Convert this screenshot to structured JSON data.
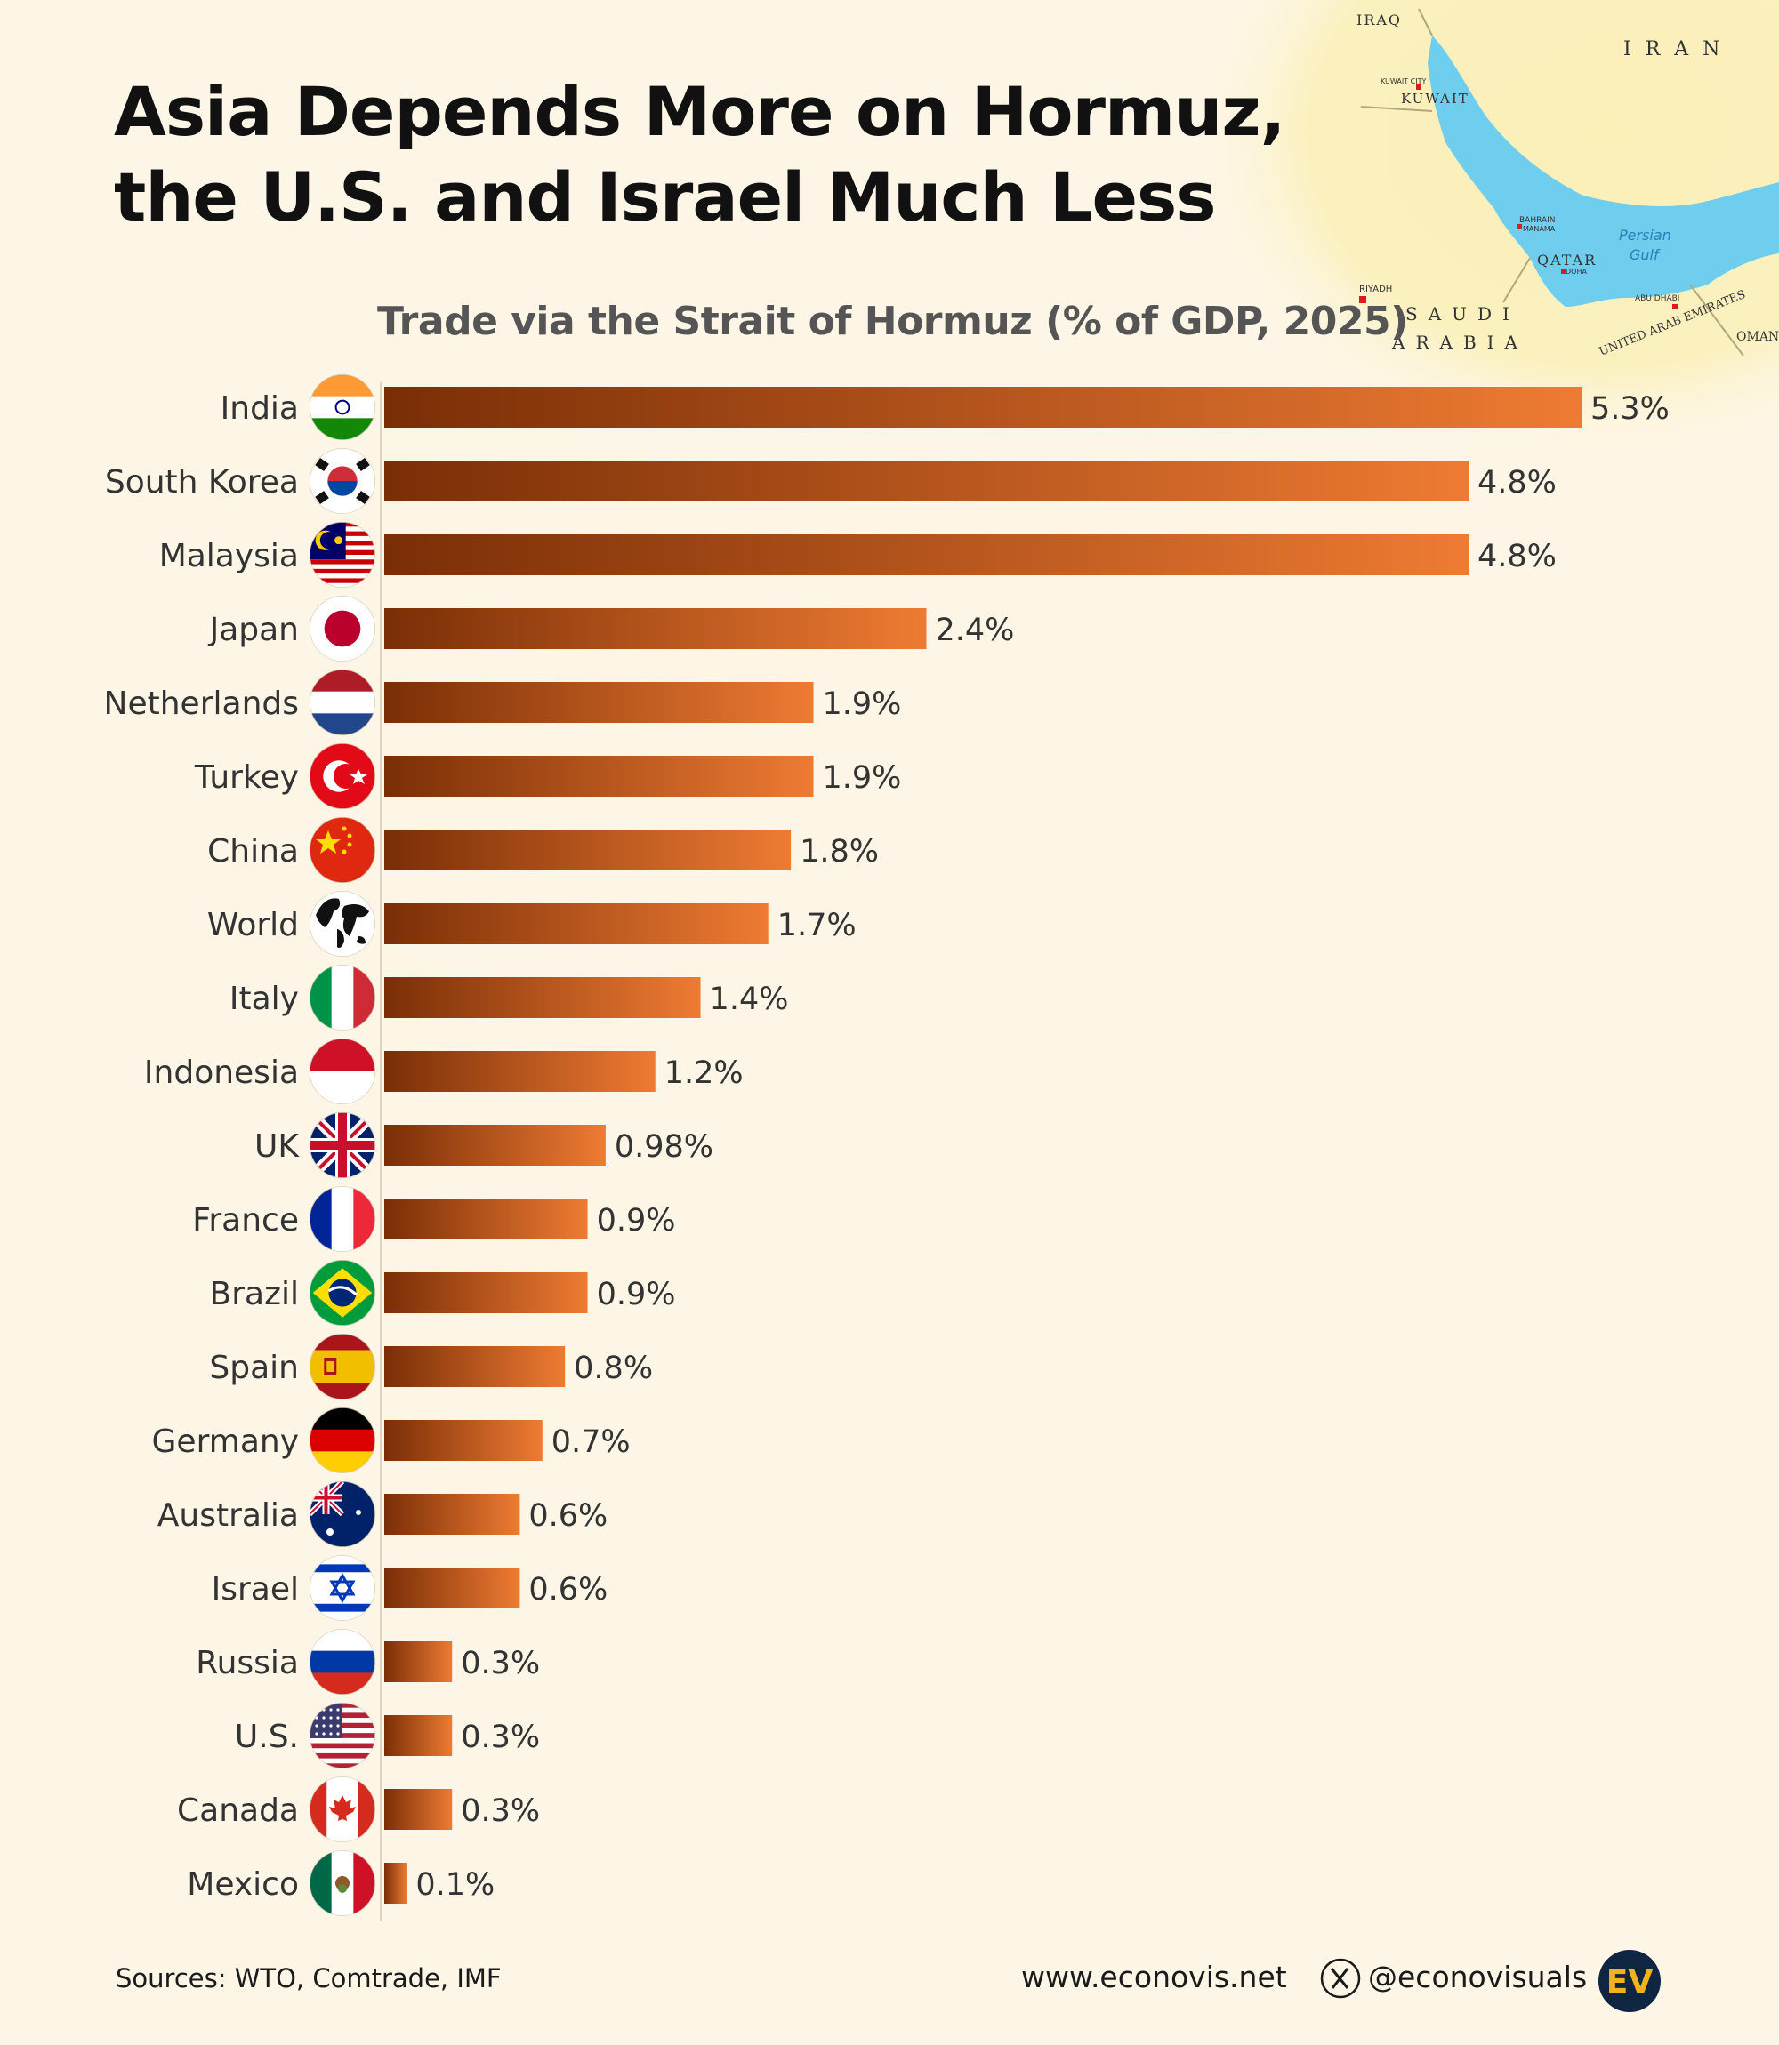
{
  "title_lines": [
    "Asia Depends More on Hormuz,",
    "the U.S. and Israel Much Less"
  ],
  "colors": {
    "background": "#fdf6e6",
    "bar_dark": "#7a2e06",
    "bar_light": "#ee7b33",
    "map_water": "#6fcdee",
    "map_land": "#fbf0b8",
    "logo_bg": "#0f2542",
    "logo_fg": "#f2b21c"
  },
  "map": {
    "country_labels": [
      "IRAQ",
      "IRAN",
      "KUWAIT",
      "SAUDI",
      "ARABIA",
      "QATAR",
      "OMAN",
      "UNITED ARAB EMIRATES"
    ],
    "city_labels": [
      "KUWAIT CITY",
      "BAHRAIN",
      "MANAMA",
      "DOHA",
      "RIYADH",
      "ABU DHABI"
    ],
    "water_labels": [
      "Persian",
      "Gulf"
    ]
  },
  "chart_data": {
    "type": "bar",
    "orientation": "horizontal",
    "title": "Trade via the Strait of Hormuz (% of GDP, 2025)",
    "categories": [
      "India",
      "South Korea",
      "Malaysia",
      "Japan",
      "Netherlands",
      "Turkey",
      "China",
      "World",
      "Italy",
      "Indonesia",
      "UK",
      "France",
      "Brazil",
      "Spain",
      "Germany",
      "Australia",
      "Israel",
      "Russia",
      "U.S.",
      "Canada",
      "Mexico"
    ],
    "values": [
      5.3,
      4.8,
      4.8,
      2.4,
      1.9,
      1.9,
      1.8,
      1.7,
      1.4,
      1.2,
      0.98,
      0.9,
      0.9,
      0.8,
      0.7,
      0.6,
      0.6,
      0.3,
      0.3,
      0.3,
      0.1
    ],
    "value_labels": [
      "5.3%",
      "4.8%",
      "4.8%",
      "2.4%",
      "1.9%",
      "1.9%",
      "1.8%",
      "1.7%",
      "1.4%",
      "1.2%",
      "0.98%",
      "0.9%",
      "0.9%",
      "0.8%",
      "0.7%",
      "0.6%",
      "0.6%",
      "0.3%",
      "0.3%",
      "0.3%",
      "0.1%"
    ],
    "flags": [
      "india-flag",
      "south-korea-flag",
      "malaysia-flag",
      "japan-flag",
      "netherlands-flag",
      "turkey-flag",
      "china-flag",
      "world-globe",
      "italy-flag",
      "indonesia-flag",
      "uk-flag",
      "france-flag",
      "brazil-flag",
      "spain-flag",
      "germany-flag",
      "australia-flag",
      "israel-flag",
      "russia-flag",
      "us-flag",
      "canada-flag",
      "mexico-flag"
    ],
    "xlim": [
      0,
      5.3
    ],
    "grid": false,
    "legend": "none"
  },
  "footer": {
    "source": "Sources: WTO, Comtrade, IMF",
    "website": "www.econovis.net",
    "x_icon": "x-logo-icon",
    "handle": "@econovisuals",
    "logo_text": "EV"
  }
}
